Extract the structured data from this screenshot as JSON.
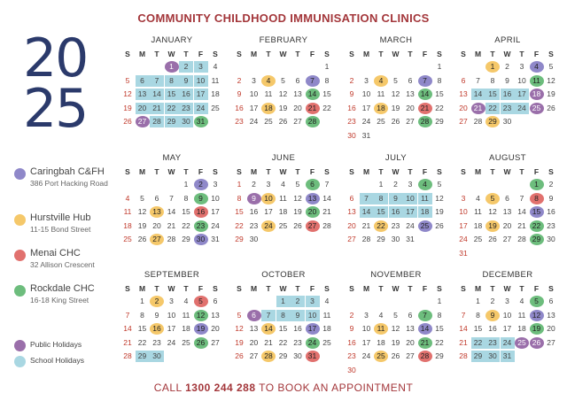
{
  "title": "COMMUNITY CHILDHOOD IMMUNISATION CLINICS",
  "year_top": "20",
  "year_bottom": "25",
  "footer": {
    "pre": "CALL ",
    "phone": "1300 244 288",
    "post": " TO BOOK AN APPOINTMENT"
  },
  "weekdays": [
    "S",
    "M",
    "T",
    "W",
    "T",
    "F",
    "S"
  ],
  "colors": {
    "school_holidays": "#a9d7e2",
    "public_holidays": "#9a6faa",
    "caringbah": "#8f88c9",
    "hurstville": "#f5c86a",
    "menai": "#e1716e",
    "rockdale": "#6dbd7d",
    "accent": "#a3363a",
    "year": "#2b3a6b"
  },
  "legend": [
    {
      "key": "car",
      "name": "Caringbah C&FH",
      "address": "386 Port Hacking Road"
    },
    {
      "key": "hur",
      "name": "Hurstville Hub",
      "address": "11-15 Bond Street"
    },
    {
      "key": "men",
      "name": "Menai CHC",
      "address": "32 Allison Crescent"
    },
    {
      "key": "rck",
      "name": "Rockdale CHC",
      "address": "16-18 King Street"
    },
    {
      "key": "ph",
      "name": "Public Holidays"
    },
    {
      "key": "sh",
      "name": "School Holidays"
    }
  ],
  "months": [
    {
      "name": "JANUARY",
      "start": 3,
      "days": 31,
      "marks": {
        "1": "ph",
        "2": "sh",
        "3": "sh",
        "6": "sh",
        "7": "sh",
        "8": "sh",
        "9": "sh",
        "10": "sh",
        "13": "sh",
        "14": "sh",
        "15": "sh",
        "16": "sh",
        "17": "sh",
        "20": "sh",
        "21": "sh",
        "22": "sh",
        "23": "sh",
        "24": "sh",
        "27": "ph",
        "28": "sh",
        "29": "sh",
        "30": "sh",
        "31": "rck"
      }
    },
    {
      "name": "FEBRUARY",
      "start": 6,
      "days": 28,
      "marks": {
        "4": "hur",
        "7": "car",
        "14": "rck",
        "18": "hur",
        "21": "men",
        "28": "rck"
      }
    },
    {
      "name": "MARCH",
      "start": 6,
      "days": 31,
      "marks": {
        "4": "hur",
        "7": "car",
        "14": "rck",
        "18": "hur",
        "21": "men",
        "28": "rck"
      }
    },
    {
      "name": "APRIL",
      "start": 2,
      "days": 30,
      "marks": {
        "1": "hur",
        "4": "car",
        "11": "rck",
        "14": "sh",
        "15": "sh",
        "16": "sh",
        "17": "sh",
        "18": "ph",
        "21": "ph",
        "22": "sh",
        "23": "sh",
        "24": "sh",
        "25": "ph",
        "29": "hur"
      }
    },
    {
      "name": "MAY",
      "start": 4,
      "days": 31,
      "marks": {
        "2": "car",
        "9": "rck",
        "13": "hur",
        "16": "men",
        "23": "rck",
        "27": "hur",
        "30": "car"
      }
    },
    {
      "name": "JUNE",
      "start": 0,
      "days": 30,
      "marks": {
        "6": "rck",
        "9": "ph",
        "10": "hur",
        "13": "car",
        "20": "rck",
        "24": "hur",
        "27": "men"
      }
    },
    {
      "name": "JULY",
      "start": 2,
      "days": 31,
      "marks": {
        "4": "rck",
        "7": "sh",
        "8": "sh",
        "9": "sh",
        "10": "sh",
        "11": "sh",
        "14": "sh",
        "15": "sh",
        "16": "sh",
        "17": "sh",
        "18": "sh",
        "22": "hur",
        "25": "car"
      }
    },
    {
      "name": "AUGUST",
      "start": 5,
      "days": 31,
      "marks": {
        "1": "rck",
        "5": "hur",
        "8": "men",
        "15": "car",
        "19": "hur",
        "22": "rck",
        "29": "rck"
      }
    },
    {
      "name": "SEPTEMBER",
      "start": 1,
      "days": 30,
      "marks": {
        "2": "hur",
        "5": "men",
        "12": "rck",
        "16": "hur",
        "19": "car",
        "26": "rck",
        "29": "sh",
        "30": "sh"
      }
    },
    {
      "name": "OCTOBER",
      "start": 3,
      "days": 31,
      "marks": {
        "1": "sh",
        "2": "sh",
        "3": "sh",
        "6": "ph",
        "7": "sh",
        "8": "sh",
        "9": "sh",
        "10": "sh",
        "14": "hur",
        "17": "car",
        "24": "rck",
        "28": "hur",
        "31": "men"
      }
    },
    {
      "name": "NOVEMBER",
      "start": 6,
      "days": 30,
      "marks": {
        "7": "rck",
        "11": "hur",
        "14": "car",
        "21": "rck",
        "25": "hur",
        "28": "men"
      }
    },
    {
      "name": "DECEMBER",
      "start": 1,
      "days": 31,
      "marks": {
        "5": "rck",
        "9": "hur",
        "12": "car",
        "19": "rck",
        "22": "sh",
        "23": "sh",
        "24": "sh",
        "25": "ph",
        "26": "ph",
        "29": "sh",
        "30": "sh",
        "31": "sh"
      }
    }
  ]
}
